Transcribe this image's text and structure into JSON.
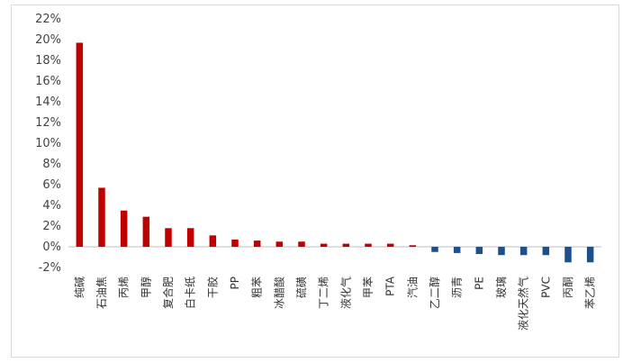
{
  "chart_data": {
    "type": "bar",
    "title": "",
    "xlabel": "",
    "ylabel": "",
    "ylim": [
      -2,
      22
    ],
    "y_ticks": [
      "22%",
      "20%",
      "18%",
      "16%",
      "14%",
      "12%",
      "10%",
      "8%",
      "6%",
      "4%",
      "2%",
      "0%",
      "-2%"
    ],
    "grid": false,
    "legend": "none",
    "colors": {
      "positive": "#c00000",
      "negative": "#1f4e8c",
      "axis": "#bfbfbf"
    },
    "categories": [
      "纯碱",
      "石油焦",
      "丙烯",
      "甲醇",
      "复合肥",
      "白卡纸",
      "干胶",
      "PP",
      "粗苯",
      "冰醋酸",
      "硫磺",
      "丁二烯",
      "液化气",
      "甲苯",
      "PTA",
      "汽油",
      "乙二醇",
      "沥青",
      "PE",
      "玻璃",
      "液化天然气",
      "PVC",
      "丙酮",
      "苯乙烯"
    ],
    "values": [
      19.7,
      5.7,
      3.5,
      2.9,
      1.8,
      1.8,
      1.1,
      0.7,
      0.6,
      0.5,
      0.5,
      0.3,
      0.3,
      0.3,
      0.3,
      0.15,
      -0.5,
      -0.6,
      -0.7,
      -0.8,
      -0.8,
      -0.8,
      -1.5,
      -1.5
    ]
  }
}
